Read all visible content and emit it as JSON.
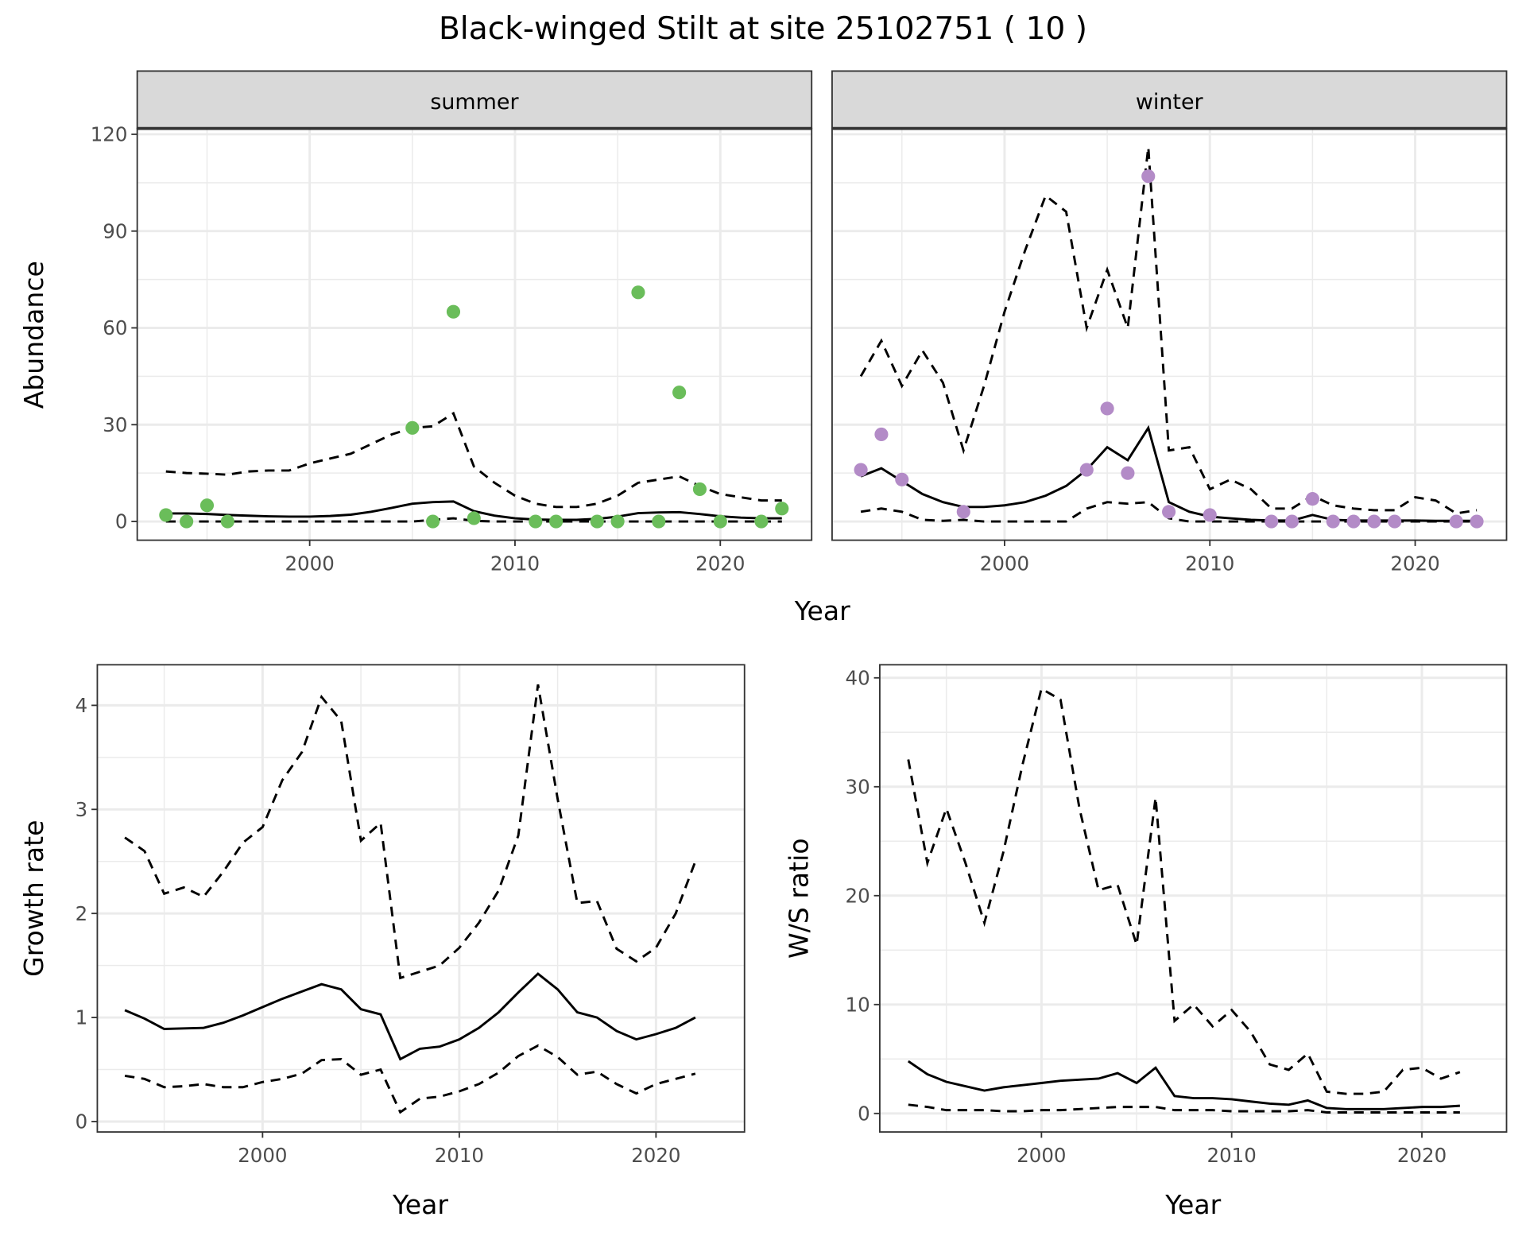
{
  "title": "Black-winged Stilt at site 25102751 ( 10 )",
  "colors": {
    "summer": "#6abd5a",
    "winter": "#b38bc7",
    "grid": "#ebebeb",
    "strip": "#d9d9d9",
    "line": "#000000"
  },
  "chart_data": [
    {
      "type": "line",
      "facet": "summer",
      "xlabel": "Year",
      "ylabel": "Abundance",
      "xlim": [
        1991.6,
        2024.45
      ],
      "ylim": [
        -5.8,
        121.8
      ],
      "xticks": [
        2000,
        2010,
        2020
      ],
      "yticks": [
        0,
        30,
        60,
        90,
        120
      ],
      "grid": true,
      "years": [
        1993,
        1994,
        1995,
        1996,
        1997,
        1998,
        1999,
        2000,
        2001,
        2002,
        2003,
        2004,
        2005,
        2006,
        2007,
        2008,
        2009,
        2010,
        2011,
        2012,
        2013,
        2014,
        2015,
        2016,
        2017,
        2018,
        2019,
        2020,
        2021,
        2022,
        2023
      ],
      "mean": [
        2.5,
        2.5,
        2.3,
        2.0,
        1.8,
        1.6,
        1.5,
        1.5,
        1.7,
        2.1,
        3.0,
        4.2,
        5.5,
        6.0,
        6.2,
        3.2,
        1.8,
        1.0,
        0.6,
        0.5,
        0.5,
        0.8,
        1.5,
        2.6,
        2.8,
        2.9,
        2.3,
        1.6,
        1.2,
        1.0,
        1.0
      ],
      "upper": [
        15.5,
        15.0,
        14.8,
        14.5,
        15.5,
        15.8,
        15.8,
        18,
        19.5,
        21,
        24,
        27,
        29,
        29.5,
        33.5,
        17,
        12,
        8,
        5.5,
        4.5,
        4.5,
        5.5,
        8,
        12,
        13,
        14,
        11,
        8.5,
        7.5,
        6.5,
        6.5
      ],
      "lower": [
        0,
        0,
        0,
        0,
        0,
        0,
        0,
        0,
        0,
        0,
        0,
        0,
        0,
        0.5,
        1,
        0.2,
        0,
        0,
        0,
        0,
        0,
        0,
        0,
        0,
        0,
        0,
        0,
        0,
        0,
        0,
        0
      ],
      "points": {
        "years": [
          1993,
          1994,
          1995,
          1996,
          2005,
          2006,
          2007,
          2008,
          2011,
          2012,
          2014,
          2015,
          2016,
          2017,
          2018,
          2019,
          2020,
          2022,
          2023
        ],
        "values": [
          2,
          0,
          5,
          0,
          29,
          0,
          65,
          1,
          0,
          0,
          0,
          0,
          71,
          0,
          40,
          10,
          0,
          0,
          4
        ]
      }
    },
    {
      "type": "line",
      "facet": "winter",
      "xlabel": "Year",
      "ylabel": "Abundance",
      "xlim": [
        1991.6,
        2024.45
      ],
      "ylim": [
        -5.8,
        121.8
      ],
      "xticks": [
        2000,
        2010,
        2020
      ],
      "yticks": [
        0,
        30,
        60,
        90,
        120
      ],
      "grid": true,
      "years": [
        1993,
        1994,
        1995,
        1996,
        1997,
        1998,
        1999,
        2000,
        2001,
        2002,
        2003,
        2004,
        2005,
        2006,
        2007,
        2008,
        2009,
        2010,
        2011,
        2012,
        2013,
        2014,
        2015,
        2016,
        2017,
        2018,
        2019,
        2020,
        2021,
        2022,
        2023
      ],
      "mean": [
        14,
        16.5,
        12.5,
        8.5,
        6,
        4.5,
        4.5,
        5,
        6,
        8,
        11,
        16,
        23,
        19,
        29,
        6,
        3,
        1.5,
        1,
        0.5,
        0.3,
        0.3,
        2,
        0.5,
        0.3,
        0.3,
        0.3,
        0.3,
        0.2,
        0.2,
        0.2
      ],
      "upper": [
        45,
        56,
        42,
        53,
        43,
        22,
        42,
        65,
        84,
        101,
        96,
        60,
        78,
        60,
        116,
        22,
        23,
        10,
        13,
        10,
        4,
        4,
        8,
        5,
        4,
        3.5,
        3.5,
        7.5,
        6.5,
        2.5,
        3.5
      ],
      "lower": [
        3,
        4,
        3,
        0.5,
        0.2,
        0.5,
        0,
        0,
        0,
        0,
        0,
        4,
        6,
        5.5,
        6,
        1,
        0,
        0,
        0,
        0,
        0,
        0,
        0,
        0,
        0,
        0,
        0,
        0,
        0,
        0,
        0
      ],
      "points": {
        "years": [
          1993,
          1994,
          1995,
          1998,
          2004,
          2005,
          2006,
          2007,
          2008,
          2010,
          2013,
          2014,
          2015,
          2016,
          2017,
          2018,
          2019,
          2022,
          2023
        ],
        "values": [
          16,
          27,
          13,
          3,
          16,
          35,
          15,
          107,
          3,
          2,
          0,
          0,
          7,
          0,
          0,
          0,
          0,
          0,
          0
        ]
      }
    },
    {
      "type": "line",
      "xlabel": "Year",
      "ylabel": "Growth rate",
      "xlim": [
        1991.6,
        2024.5
      ],
      "ylim": [
        -0.1,
        4.39
      ],
      "xticks": [
        2000,
        2010,
        2020
      ],
      "yticks": [
        0,
        1,
        2,
        3,
        4
      ],
      "grid": true,
      "years": [
        1993,
        1994,
        1995,
        1996,
        1997,
        1998,
        1999,
        2000,
        2001,
        2002,
        2003,
        2004,
        2005,
        2006,
        2007,
        2008,
        2009,
        2010,
        2011,
        2012,
        2013,
        2014,
        2015,
        2016,
        2017,
        2018,
        2019,
        2020,
        2021,
        2022
      ],
      "mean": [
        1.07,
        0.99,
        0.89,
        0.895,
        0.9,
        0.95,
        1.02,
        1.1,
        1.18,
        1.25,
        1.32,
        1.27,
        1.08,
        1.03,
        0.6,
        0.7,
        0.72,
        0.79,
        0.9,
        1.05,
        1.24,
        1.42,
        1.27,
        1.05,
        1.0,
        0.87,
        0.79,
        0.84,
        0.9,
        1.0
      ],
      "upper": [
        2.73,
        2.6,
        2.19,
        2.25,
        2.16,
        2.4,
        2.68,
        2.83,
        3.28,
        3.55,
        4.08,
        3.85,
        2.7,
        2.87,
        1.38,
        1.44,
        1.5,
        1.67,
        1.91,
        2.22,
        2.75,
        4.2,
        3.1,
        2.1,
        2.12,
        1.66,
        1.54,
        1.67,
        2.0,
        2.5
      ],
      "lower": [
        0.44,
        0.41,
        0.33,
        0.34,
        0.36,
        0.33,
        0.33,
        0.38,
        0.41,
        0.46,
        0.59,
        0.6,
        0.45,
        0.5,
        0.09,
        0.22,
        0.24,
        0.29,
        0.36,
        0.47,
        0.63,
        0.73,
        0.62,
        0.45,
        0.48,
        0.36,
        0.27,
        0.36,
        0.41,
        0.46
      ]
    },
    {
      "type": "line",
      "xlabel": "Year",
      "ylabel": "W/S ratio",
      "xlim": [
        1991.5,
        2024.45
      ],
      "ylim": [
        -1.7,
        41.2
      ],
      "xticks": [
        2000,
        2010,
        2020
      ],
      "yticks": [
        0,
        10,
        20,
        30,
        40
      ],
      "grid": true,
      "years": [
        1993,
        1994,
        1995,
        1996,
        1997,
        1998,
        1999,
        2000,
        2001,
        2002,
        2003,
        2004,
        2005,
        2006,
        2007,
        2008,
        2009,
        2010,
        2011,
        2012,
        2013,
        2014,
        2015,
        2016,
        2017,
        2018,
        2019,
        2020,
        2021,
        2022
      ],
      "mean": [
        4.8,
        3.6,
        2.9,
        2.5,
        2.1,
        2.4,
        2.6,
        2.8,
        3.0,
        3.1,
        3.2,
        3.7,
        2.8,
        4.2,
        1.6,
        1.4,
        1.4,
        1.3,
        1.1,
        0.9,
        0.8,
        1.2,
        0.5,
        0.4,
        0.4,
        0.4,
        0.5,
        0.6,
        0.6,
        0.7
      ],
      "upper": [
        32.5,
        23,
        28,
        23,
        17.5,
        24,
        32,
        39,
        38,
        28,
        20.5,
        21,
        15.5,
        29,
        8.5,
        10,
        8,
        9.5,
        7.5,
        4.5,
        4,
        5.5,
        2,
        1.8,
        1.8,
        2,
        4,
        4.2,
        3.2,
        3.8
      ],
      "lower": [
        0.8,
        0.6,
        0.3,
        0.3,
        0.3,
        0.2,
        0.2,
        0.3,
        0.3,
        0.4,
        0.5,
        0.6,
        0.6,
        0.6,
        0.3,
        0.3,
        0.3,
        0.2,
        0.2,
        0.2,
        0.2,
        0.3,
        0.1,
        0.1,
        0.1,
        0.1,
        0.1,
        0.1,
        0.1,
        0.1
      ]
    }
  ]
}
